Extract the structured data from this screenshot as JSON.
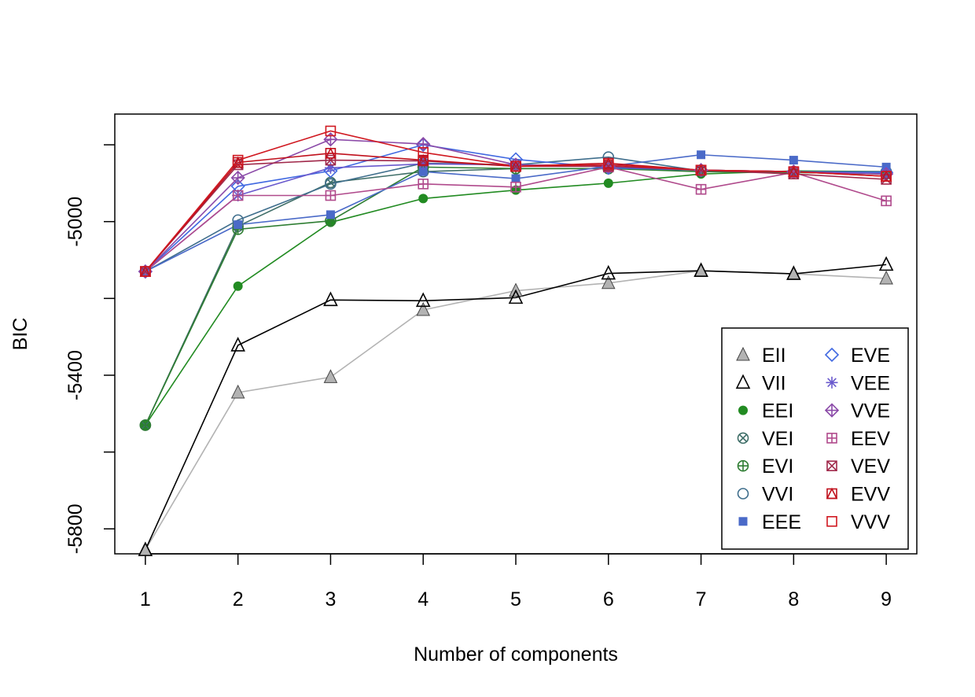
{
  "chart_data": {
    "type": "line",
    "xlabel": "Number of components",
    "ylabel": "BIC",
    "x": [
      1,
      2,
      3,
      4,
      5,
      6,
      7,
      8,
      9
    ],
    "xlim": [
      0.67,
      9.33
    ],
    "ylim": [
      -5865,
      -4720
    ],
    "x_ticks": [
      "1",
      "2",
      "3",
      "4",
      "5",
      "6",
      "7",
      "8",
      "9"
    ],
    "y_ticks": [
      {
        "value": -5800,
        "label": "-5800"
      },
      {
        "value": -5400,
        "label": "-5400"
      },
      {
        "value": -5000,
        "label": "-5000"
      }
    ],
    "grid": false,
    "legend_position": "bottom-right",
    "series": [
      {
        "name": "EII",
        "color": "#b3b3b3",
        "marker": "triangle-filled",
        "values": [
          -5855,
          -5445,
          -5405,
          -5230,
          -5180,
          -5160,
          -5128,
          -5136,
          -5148
        ]
      },
      {
        "name": "VII",
        "color": "#000000",
        "marker": "triangle-open",
        "values": [
          -5855,
          -5322,
          -5204,
          -5206,
          -5198,
          -5135,
          -5128,
          -5136,
          -5112
        ]
      },
      {
        "name": "EEI",
        "color": "#228b22",
        "marker": "circle-filled",
        "values": [
          -5530,
          -5168,
          -5002,
          -4940,
          -4918,
          -4900,
          -4876,
          -4868,
          -4870
        ]
      },
      {
        "name": "VEI",
        "color": "#3f6e68",
        "marker": "circle-x",
        "values": [
          -5530,
          -5012,
          -4898,
          -4870,
          -4862,
          -4862,
          -4866,
          -4870,
          -4872
        ]
      },
      {
        "name": "EVI",
        "color": "#2e7d32",
        "marker": "circle-plus",
        "values": [
          -5530,
          -5020,
          -4998,
          -4858,
          -4862,
          -4862,
          -4870,
          -4872,
          -4876
        ]
      },
      {
        "name": "VVI",
        "color": "#3f6e8c",
        "marker": "circle-open",
        "values": [
          -5130,
          -4996,
          -4902,
          -4848,
          -4852,
          -4832,
          -4868,
          -4870,
          -4870
        ]
      },
      {
        "name": "EEE",
        "color": "#4a6ac8",
        "marker": "square-filled",
        "values": [
          -5130,
          -5008,
          -4982,
          -4870,
          -4888,
          -4856,
          -4826,
          -4840,
          -4858
        ]
      },
      {
        "name": "EVE",
        "color": "#4169e1",
        "marker": "diamond-open",
        "values": [
          -5130,
          -4908,
          -4868,
          -4800,
          -4838,
          -4860,
          -4866,
          -4870,
          -4872
        ]
      },
      {
        "name": "VEE",
        "color": "#6a5acd",
        "marker": "asterisk",
        "values": [
          -5130,
          -4932,
          -4860,
          -4850,
          -4852,
          -4856,
          -4866,
          -4870,
          -4876
        ]
      },
      {
        "name": "VVE",
        "color": "#8b4aa8",
        "marker": "diamond-plus",
        "values": [
          -5130,
          -4886,
          -4786,
          -4798,
          -4852,
          -4856,
          -4866,
          -4870,
          -4876
        ]
      },
      {
        "name": "EEV",
        "color": "#b04a8c",
        "marker": "square-plus",
        "values": [
          -5130,
          -4932,
          -4932,
          -4902,
          -4910,
          -4858,
          -4916,
          -4872,
          -4946
        ]
      },
      {
        "name": "VEV",
        "color": "#a0284a",
        "marker": "square-x",
        "values": [
          -5130,
          -4852,
          -4840,
          -4842,
          -4856,
          -4856,
          -4866,
          -4876,
          -4890
        ]
      },
      {
        "name": "EVV",
        "color": "#c0101c",
        "marker": "square-triangle",
        "values": [
          -5130,
          -4846,
          -4822,
          -4840,
          -4856,
          -4848,
          -4866,
          -4870,
          -4882
        ]
      },
      {
        "name": "VVV",
        "color": "#d01820",
        "marker": "square-open",
        "values": [
          -5130,
          -4840,
          -4764,
          -4820,
          -4856,
          -4852,
          -4866,
          -4870,
          -4882
        ]
      }
    ]
  }
}
